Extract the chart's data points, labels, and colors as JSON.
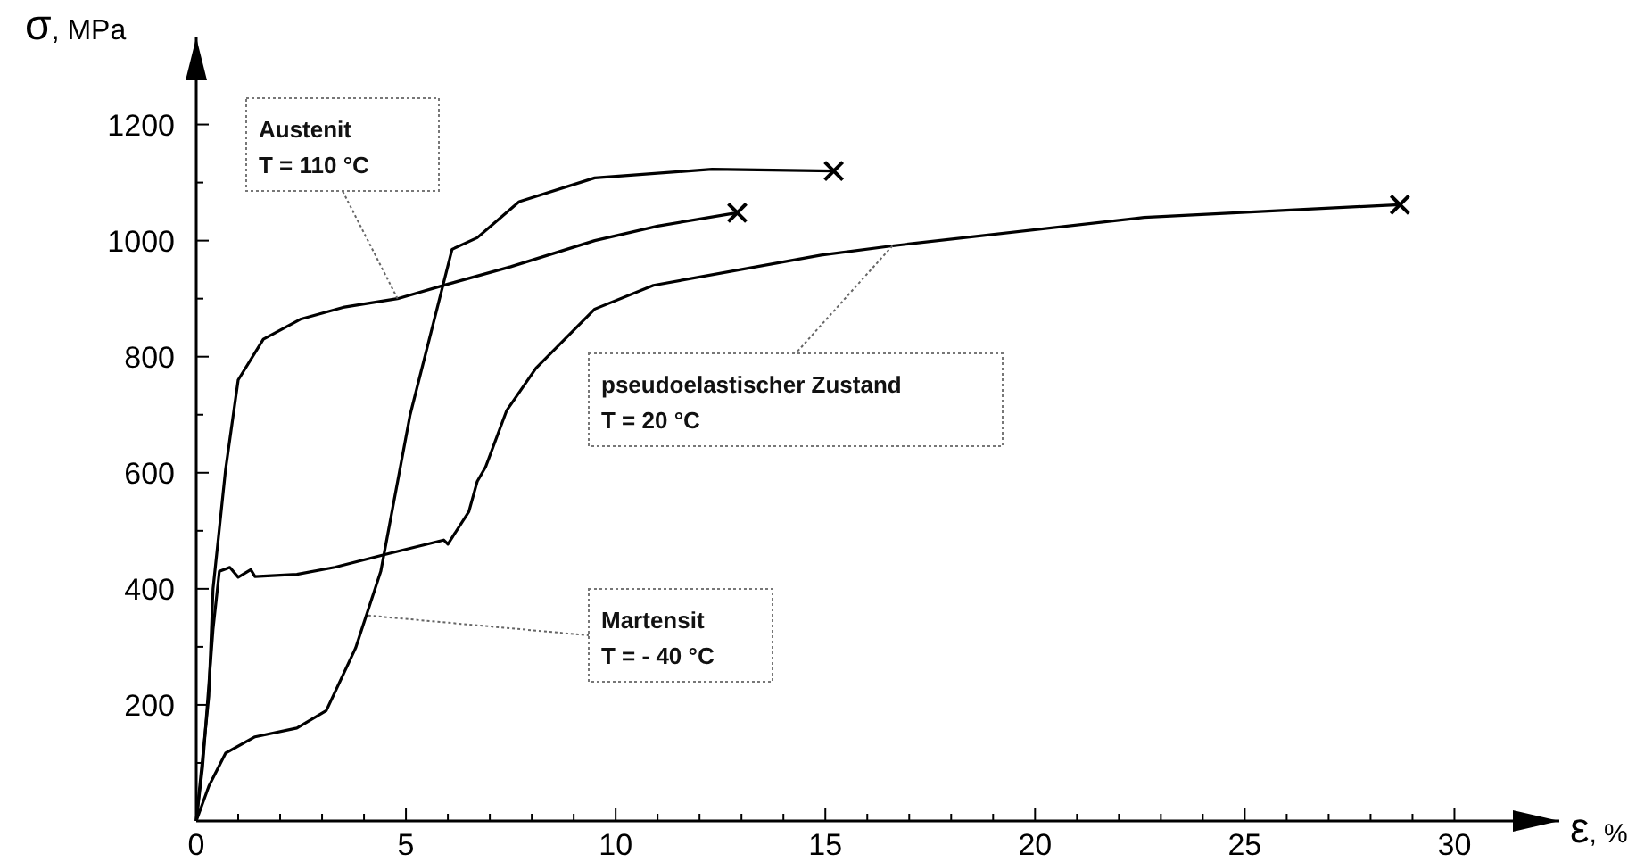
{
  "chart_data": {
    "type": "line",
    "xlabel": "ε, %",
    "ylabel": "σ, MPa",
    "xlim": [
      0,
      32.5
    ],
    "ylim": [
      0,
      1350
    ],
    "xticks": [
      0,
      {
        "value": 1,
        "label": null
      },
      {
        "value": 2,
        "label": null
      },
      {
        "value": 3,
        "label": null
      },
      {
        "value": 4,
        "label": null
      },
      5,
      {
        "value": 6,
        "label": null
      },
      {
        "value": 7,
        "label": null
      },
      {
        "value": 8,
        "label": null
      },
      {
        "value": 9,
        "label": null
      },
      10,
      {
        "value": 11,
        "label": null
      },
      {
        "value": 12,
        "label": null
      },
      {
        "value": 13,
        "label": null
      },
      {
        "value": 14,
        "label": null
      },
      15,
      {
        "value": 16,
        "label": null
      },
      {
        "value": 17,
        "label": null
      },
      {
        "value": 18,
        "label": null
      },
      {
        "value": 19,
        "label": null
      },
      20,
      {
        "value": 21,
        "label": null
      },
      {
        "value": 22,
        "label": null
      },
      {
        "value": 23,
        "label": null
      },
      {
        "value": 24,
        "label": null
      },
      25,
      {
        "value": 26,
        "label": null
      },
      {
        "value": 27,
        "label": null
      },
      {
        "value": 28,
        "label": null
      },
      {
        "value": 29,
        "label": null
      },
      30
    ],
    "yticks": [
      {
        "value": 100,
        "label": null
      },
      200,
      {
        "value": 300,
        "label": null
      },
      400,
      {
        "value": 500,
        "label": null
      },
      600,
      {
        "value": 700,
        "label": null
      },
      800,
      {
        "value": 900,
        "label": null
      },
      1000,
      {
        "value": 1100,
        "label": null
      },
      1200
    ],
    "grid": false,
    "line_style": "solid",
    "marker": "none",
    "series": [
      {
        "color": "#000000",
        "x": [
          0,
          0.3,
          0.4,
          0.7,
          1.0,
          1.6,
          2.5,
          3.5,
          4.8,
          6,
          7.5,
          9.5,
          11,
          12.9
        ],
        "values": [
          0,
          215,
          400,
          606,
          760,
          830,
          865,
          885,
          900,
          925,
          955,
          1000,
          1025,
          1048
        ]
      },
      {
        "color": "#000000",
        "x": [
          0,
          0.3,
          0.7,
          1.4,
          2.4,
          3.1,
          3.8,
          4.4,
          5.1,
          6.1,
          6.7,
          7.7,
          9.5,
          12.3,
          15.2
        ],
        "values": [
          0,
          60,
          117,
          145,
          160,
          190,
          298,
          430,
          700,
          985,
          1005,
          1067,
          1108,
          1123,
          1120
        ]
      },
      {
        "color": "#000000",
        "x": [
          0,
          0.15,
          0.4,
          0.55,
          0.8,
          1.0,
          1.3,
          1.4,
          2.4,
          3.3,
          4.6,
          5.9,
          6.0,
          6.5,
          6.7,
          6.9,
          7.4,
          8.1,
          9.5,
          10.9,
          14.9,
          16.6,
          22.6,
          28.7
        ],
        "values": [
          0,
          92,
          330,
          430,
          437,
          420,
          433,
          421,
          425,
          437,
          461,
          484,
          477,
          533,
          585,
          610,
          707,
          780,
          882,
          923,
          975,
          991,
          1040,
          1062
        ]
      },
      {
        "type": "scatter",
        "marker": "cross",
        "color": "#000000",
        "x": [
          12.9,
          15.2,
          28.7
        ],
        "values": [
          1048,
          1120,
          1062
        ]
      }
    ],
    "annotations": [
      {
        "text": "Austenit\nT = 110 °C",
        "x": 4.8,
        "y": 900
      },
      {
        "text": "pseudoelastischer Zustand\nT = 20 °C",
        "x": 16.6,
        "y": 991
      },
      {
        "text": "Martensit\nT = - 40 °C",
        "x": 4.1,
        "y": 354
      }
    ]
  }
}
